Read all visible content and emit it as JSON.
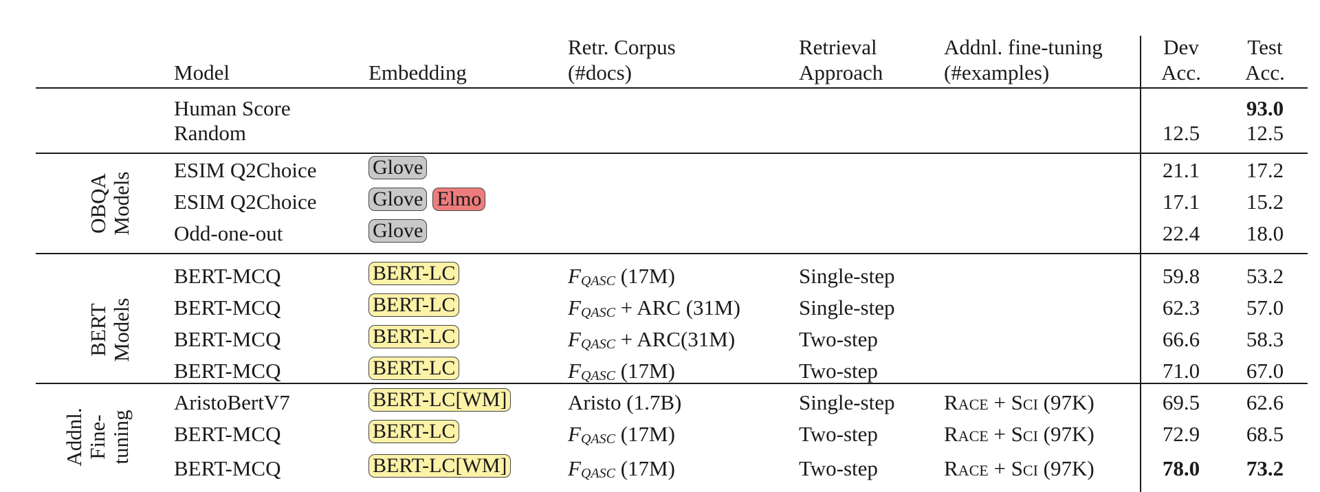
{
  "header": {
    "model": "Model",
    "embedding": "Embedding",
    "corpus_line1": "Retr. Corpus",
    "corpus_line2": "(#docs)",
    "retrieval_line1": "Retrieval",
    "retrieval_line2": "Approach",
    "finetune_line1": "Addnl. fine-tuning",
    "finetune_line2": "(#examples)",
    "dev_line1": "Dev",
    "dev_line2": "Acc.",
    "test_line1": "Test",
    "test_line2": "Acc."
  },
  "baselines": [
    {
      "model": "Human Score",
      "dev": "",
      "test": "93.0"
    },
    {
      "model": "Random",
      "dev": "12.5",
      "test": "12.5"
    }
  ],
  "groups": [
    {
      "label_lines": [
        "OBQA",
        "Models"
      ],
      "rows": [
        {
          "model": "ESIM Q2Choice",
          "embeddings": [
            "Glove"
          ],
          "corpus": "",
          "retrieval": "",
          "finetune": "",
          "dev": "21.1",
          "test": "17.2"
        },
        {
          "model": "ESIM Q2Choice",
          "embeddings": [
            "Glove",
            "Elmo"
          ],
          "corpus": "",
          "retrieval": "",
          "finetune": "",
          "dev": "17.1",
          "test": "15.2"
        },
        {
          "model": "Odd-one-out",
          "embeddings": [
            "Glove"
          ],
          "corpus": "",
          "retrieval": "",
          "finetune": "",
          "dev": "22.4",
          "test": "18.0"
        }
      ]
    },
    {
      "label_lines": [
        "BERT",
        "Models"
      ],
      "rows": [
        {
          "model": "BERT-MCQ",
          "embeddings": [
            "BERT-LC"
          ],
          "corpus": "F_QASC (17M)",
          "retrieval": "Single-step",
          "finetune": "",
          "dev": "59.8",
          "test": "53.2"
        },
        {
          "model": "BERT-MCQ",
          "embeddings": [
            "BERT-LC"
          ],
          "corpus": "F_QASC + ARC (31M)",
          "retrieval": "Single-step",
          "finetune": "",
          "dev": "62.3",
          "test": "57.0"
        },
        {
          "model": "BERT-MCQ",
          "embeddings": [
            "BERT-LC"
          ],
          "corpus": "F_QASC + ARC(31M)",
          "retrieval": "Two-step",
          "finetune": "",
          "dev": "66.6",
          "test": "58.3"
        },
        {
          "model": "BERT-MCQ",
          "embeddings": [
            "BERT-LC"
          ],
          "corpus": "F_QASC (17M)",
          "retrieval": "Two-step",
          "finetune": "",
          "dev": "71.0",
          "test": "67.0"
        }
      ]
    },
    {
      "label_lines": [
        "Addnl.",
        "Fine-",
        "tuning"
      ],
      "rows": [
        {
          "model": "AristoBertV7",
          "embeddings": [
            "BERT-LC[WM]"
          ],
          "corpus": "Aristo (1.7B)",
          "retrieval": "Single-step",
          "finetune": "RACE + SCI (97K)",
          "dev": "69.5",
          "test": "62.6"
        },
        {
          "model": "BERT-MCQ",
          "embeddings": [
            "BERT-LC"
          ],
          "corpus": "F_QASC (17M)",
          "retrieval": "Two-step",
          "finetune": "RACE + SCI (97K)",
          "dev": "72.9",
          "test": "68.5"
        },
        {
          "model": "BERT-MCQ",
          "embeddings": [
            "BERT-LC[WM]"
          ],
          "corpus": "F_QASC (17M)",
          "retrieval": "Two-step",
          "finetune": "RACE + SCI (97K)",
          "dev": "78.0",
          "test": "73.2"
        }
      ]
    }
  ],
  "bold_cells": [
    "baselines.0.test",
    "groups.2.rows.2.dev",
    "groups.2.rows.2.test"
  ],
  "badge_colors": {
    "Glove": "#c8c8c8",
    "Elmo": "#ee7c7c",
    "BERT-LC": "#fcf2a8",
    "BERT-LC[WM]": "#fcf2a8"
  }
}
